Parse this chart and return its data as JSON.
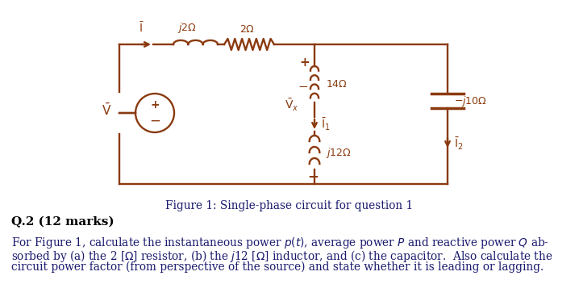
{
  "bg_color": "#ffffff",
  "circuit_color": "#8B3A0F",
  "text_color": "#1a1a6e",
  "q_heading_color": "#000000",
  "fig_caption": "Figure 1: Single-phase circuit for question 1",
  "q_heading": "Q.2 (12 marks)",
  "body_line1": "For Figure 1, calculate the instantaneous power $p(t)$, average power $P$ and reactive power $Q$ ab-",
  "body_line2": "sorbed by (a) the 2 [$\\Omega$] resistor, (b) the $j$12 [$\\Omega$] inductor, and (c) the capacitor.  Also calculate the",
  "body_line3": "circuit power factor (from perspective of the source) and state whether it is leading or lagging.",
  "font_size_body": 9.8,
  "font_size_caption": 9.8,
  "font_size_heading": 11
}
